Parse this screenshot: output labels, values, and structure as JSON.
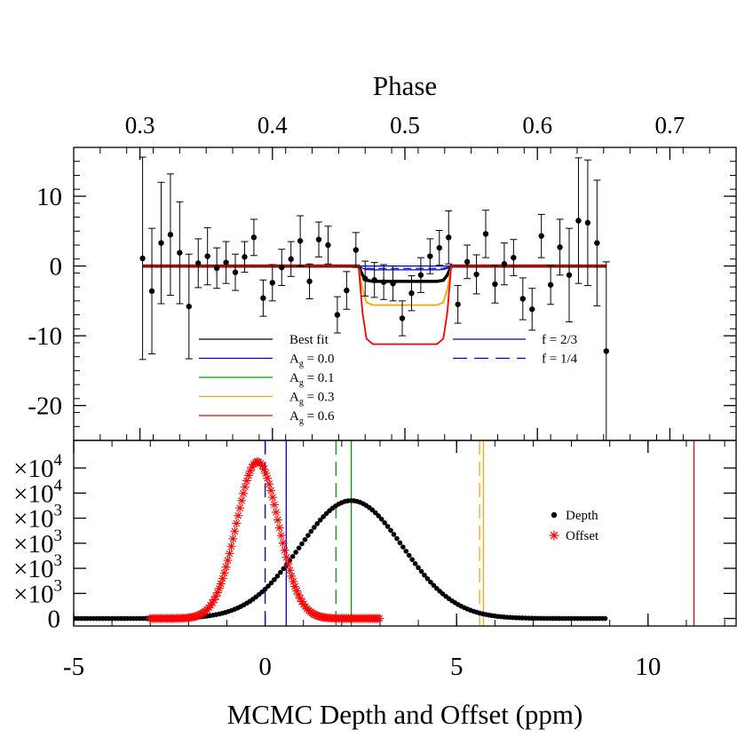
{
  "chart_data": [
    {
      "panel": "top",
      "type": "scatter",
      "top_axis": {
        "label": "Phase",
        "range": [
          0.25,
          0.75
        ],
        "ticks": [
          0.3,
          0.4,
          0.5,
          0.6,
          0.7
        ],
        "tick_labels": [
          "0.3",
          "0.4",
          "0.5",
          "0.6",
          "0.7"
        ]
      },
      "ylim": [
        -25,
        17
      ],
      "yticks": [
        10,
        0,
        -10,
        -20
      ],
      "ytick_labels": [
        "10",
        "0",
        "-10",
        "-20"
      ],
      "data_points": [
        {
          "x": 0.302,
          "y": 1.1,
          "err": 14.5
        },
        {
          "x": 0.309,
          "y": -3.6,
          "err": 9.0
        },
        {
          "x": 0.316,
          "y": 3.3,
          "err": 8.7
        },
        {
          "x": 0.323,
          "y": 4.5,
          "err": 8.7
        },
        {
          "x": 0.33,
          "y": 1.9,
          "err": 7.3
        },
        {
          "x": 0.337,
          "y": -5.8,
          "err": 7.5
        },
        {
          "x": 0.344,
          "y": 0.4,
          "err": 3.5
        },
        {
          "x": 0.351,
          "y": 1.4,
          "err": 4.1
        },
        {
          "x": 0.358,
          "y": -0.3,
          "err": 2.9
        },
        {
          "x": 0.365,
          "y": 0.5,
          "err": 3.0
        },
        {
          "x": 0.372,
          "y": -0.9,
          "err": 2.6
        },
        {
          "x": 0.379,
          "y": 1.3,
          "err": 2.2
        },
        {
          "x": 0.386,
          "y": 4.1,
          "err": 2.6
        },
        {
          "x": 0.393,
          "y": -4.6,
          "err": 2.6
        },
        {
          "x": 0.4,
          "y": -2.4,
          "err": 2.6
        },
        {
          "x": 0.407,
          "y": -0.2,
          "err": 2.6
        },
        {
          "x": 0.414,
          "y": 1.0,
          "err": 2.5
        },
        {
          "x": 0.421,
          "y": 3.6,
          "err": 3.6
        },
        {
          "x": 0.428,
          "y": -2.2,
          "err": 2.5
        },
        {
          "x": 0.435,
          "y": 3.8,
          "err": 2.5
        },
        {
          "x": 0.442,
          "y": 3.0,
          "err": 2.7
        },
        {
          "x": 0.449,
          "y": -7.0,
          "err": 2.6
        },
        {
          "x": 0.456,
          "y": -3.5,
          "err": 2.7
        },
        {
          "x": 0.463,
          "y": 2.3,
          "err": 2.5
        },
        {
          "x": 0.47,
          "y": -1.8,
          "err": 2.5
        },
        {
          "x": 0.477,
          "y": -2.0,
          "err": 2.5
        },
        {
          "x": 0.484,
          "y": -2.3,
          "err": 2.5
        },
        {
          "x": 0.491,
          "y": -2.5,
          "err": 2.5
        },
        {
          "x": 0.498,
          "y": -7.5,
          "err": 2.5
        },
        {
          "x": 0.505,
          "y": -3.9,
          "err": 2.5
        },
        {
          "x": 0.512,
          "y": -1.3,
          "err": 2.5
        },
        {
          "x": 0.519,
          "y": 1.4,
          "err": 2.5
        },
        {
          "x": 0.526,
          "y": 2.6,
          "err": 2.5
        },
        {
          "x": 0.533,
          "y": 4.1,
          "err": 3.8
        },
        {
          "x": 0.54,
          "y": -5.5,
          "err": 2.7
        },
        {
          "x": 0.547,
          "y": 0.6,
          "err": 2.4
        },
        {
          "x": 0.554,
          "y": -1.2,
          "err": 2.8
        },
        {
          "x": 0.561,
          "y": 4.6,
          "err": 3.4
        },
        {
          "x": 0.568,
          "y": -2.6,
          "err": 2.7
        },
        {
          "x": 0.575,
          "y": 0.3,
          "err": 3.0
        },
        {
          "x": 0.582,
          "y": 1.2,
          "err": 2.6
        },
        {
          "x": 0.589,
          "y": -4.7,
          "err": 3.0
        },
        {
          "x": 0.596,
          "y": -6.2,
          "err": 3.0
        },
        {
          "x": 0.603,
          "y": 4.3,
          "err": 3.1
        },
        {
          "x": 0.61,
          "y": -2.7,
          "err": 2.8
        },
        {
          "x": 0.617,
          "y": 2.7,
          "err": 4.0
        },
        {
          "x": 0.624,
          "y": -1.3,
          "err": 6.7
        },
        {
          "x": 0.631,
          "y": 6.5,
          "err": 9.0
        },
        {
          "x": 0.638,
          "y": 6.2,
          "err": 9.0
        },
        {
          "x": 0.645,
          "y": 3.3,
          "err": 9.0
        },
        {
          "x": 0.652,
          "y": -12.2,
          "err": 12.8
        }
      ],
      "models": [
        {
          "name": "Best fit",
          "color": "#000000",
          "dash": "solid",
          "depth": 2.2,
          "width": 3.5
        },
        {
          "name": "A_g = 0.0",
          "color": "#0000dd",
          "dash": "solid",
          "depth": 0.0,
          "width": 1.2
        },
        {
          "name": "A_g = 0.1",
          "color": "#00a000",
          "dash": "solid",
          "depth": 2.3,
          "width": 1.2
        },
        {
          "name": "A_g = 0.3",
          "color": "#ffa500",
          "dash": "solid",
          "depth": 5.6,
          "width": 1.8
        },
        {
          "name": "A_g = 0.6",
          "color": "#ff0000",
          "dash": "solid",
          "depth": 11.2,
          "width": 1.8
        },
        {
          "name": "f = 2/3",
          "color": "#0000dd",
          "dash": "solid",
          "depth": 0.55,
          "width": 1.2
        },
        {
          "name": "f = 1/4",
          "color": "#0000dd",
          "dash": "dashed",
          "depth": 0.35,
          "width": 1.2
        }
      ],
      "model_shape": {
        "flat_start": 0.302,
        "flat_end": 0.652,
        "ingress_start": 0.465,
        "egress_end": 0.535,
        "ingress_duration": 0.006
      },
      "legend_left": [
        {
          "sym": "Best fit",
          "text": "Best fit",
          "color": "#000000",
          "dash": "solid",
          "sub": false
        },
        {
          "sym": "A",
          "text": " = 0.0",
          "color": "#0000dd",
          "dash": "solid",
          "sub": true
        },
        {
          "sym": "A",
          "text": " = 0.1",
          "color": "#00a000",
          "dash": "solid",
          "sub": true
        },
        {
          "sym": "A",
          "text": " = 0.3",
          "color": "#ffa500",
          "dash": "solid",
          "sub": true
        },
        {
          "sym": "A",
          "text": " = 0.6",
          "color": "#ff0000",
          "dash": "solid",
          "sub": true
        }
      ],
      "legend_subscript": "g",
      "legend_right": [
        {
          "text": "f = 2/3",
          "color": "#0000dd",
          "dash": "solid"
        },
        {
          "text": "f = 1/4",
          "color": "#0000dd",
          "dash": "dashed"
        }
      ]
    },
    {
      "panel": "bottom",
      "type": "scatter",
      "xlabel": "MCMC Depth and Offset (ppm)",
      "xlim": [
        -5,
        12.3
      ],
      "xticks": [
        -5,
        0,
        5,
        10
      ],
      "xtick_labels": [
        "-5",
        "0",
        "5",
        "10"
      ],
      "ylim": [
        -0.6,
        14.2
      ],
      "ytick_labels": [
        "0",
        "×10³",
        "×10³",
        "×10³",
        "×10³",
        "×10⁴",
        "×10⁴"
      ],
      "ytick_values": [
        0,
        2,
        4,
        6,
        8,
        10,
        12
      ],
      "series": [
        {
          "name": "Depth",
          "marker": "dot",
          "color": "#000000",
          "mean": 2.25,
          "sigma": 1.35,
          "peak": 9.4,
          "x_range": [
            -5.2,
            8.9
          ],
          "step": 0.08
        },
        {
          "name": "Offset",
          "marker": "star",
          "color": "#ff0000",
          "mean": -0.2,
          "sigma": 0.55,
          "peak": 12.5,
          "x_range": [
            -3.0,
            3.0
          ],
          "step": 0.045
        }
      ],
      "vlines": [
        {
          "x": 0.0,
          "color": "#0000dd",
          "dash": "dashed"
        },
        {
          "x": 0.55,
          "color": "#0000dd",
          "dash": "solid"
        },
        {
          "x": 1.85,
          "color": "#00a000",
          "dash": "dashed"
        },
        {
          "x": 2.25,
          "color": "#00a000",
          "dash": "solid"
        },
        {
          "x": 5.6,
          "color": "#ffa500",
          "dash": "dashed"
        },
        {
          "x": 5.7,
          "color": "#ffa500",
          "dash": "solid"
        },
        {
          "x": 11.2,
          "color": "#ff0000",
          "dash": "solid"
        }
      ],
      "legend": [
        {
          "text": "Depth",
          "marker": "dot",
          "color": "#000000"
        },
        {
          "text": "Offset",
          "marker": "star",
          "color": "#ff0000"
        }
      ]
    }
  ]
}
